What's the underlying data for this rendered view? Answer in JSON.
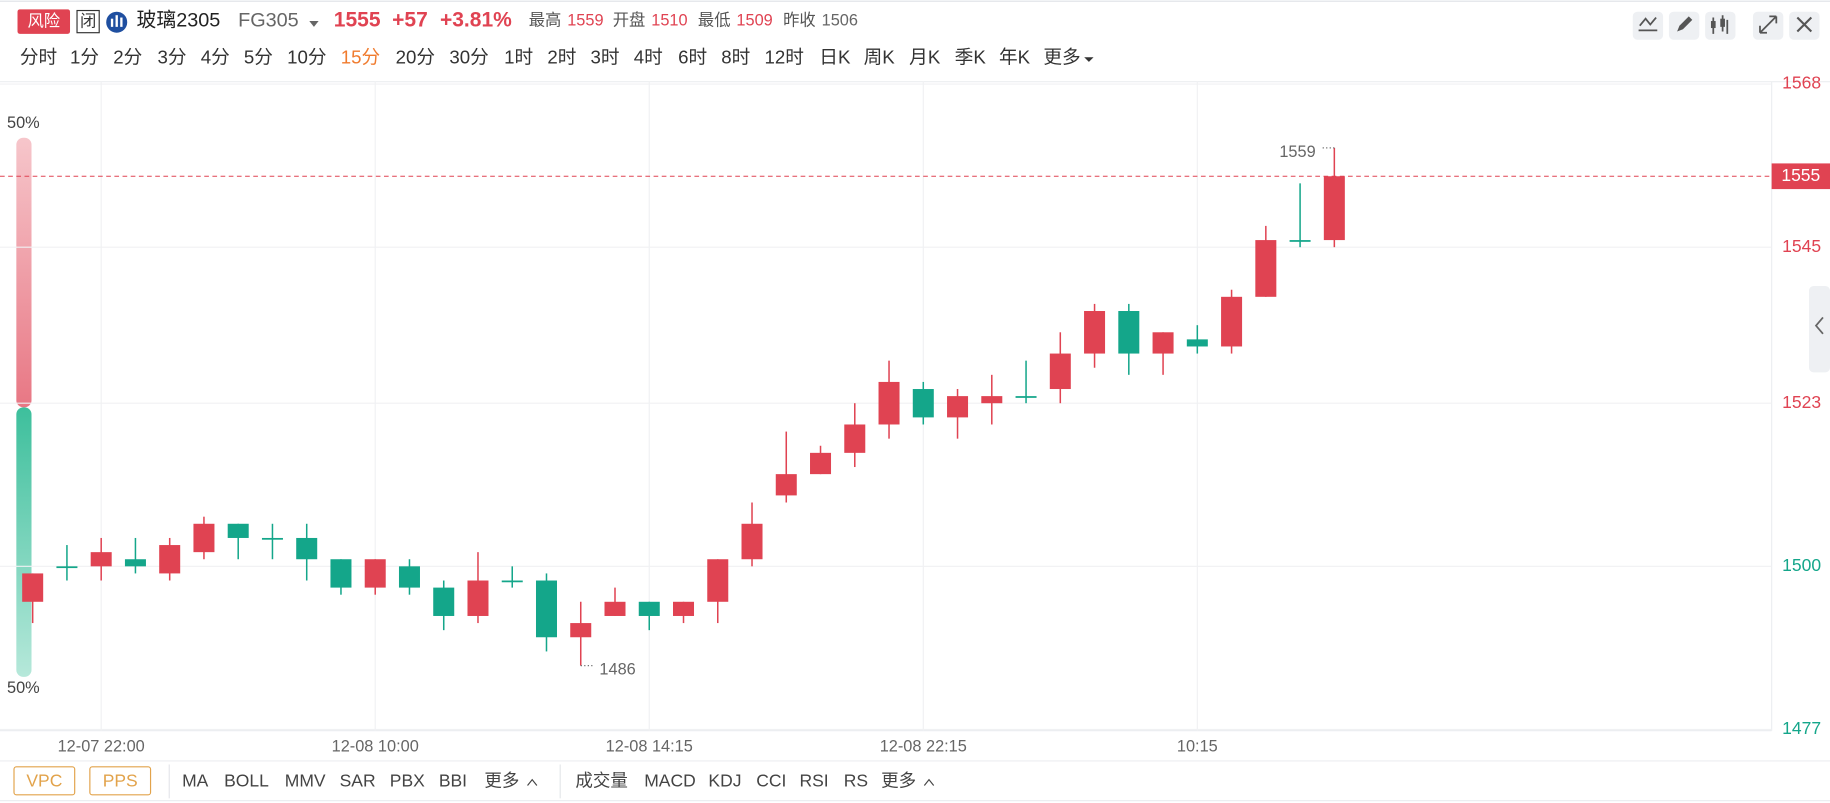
{
  "header": {
    "badge": "风险",
    "status": "闭",
    "name": "玻璃2305",
    "code": "FG305",
    "price": 1555,
    "change": "+57",
    "change_pct": "+3.81%",
    "stats": [
      {
        "label": "最高",
        "value": 1559
      },
      {
        "label": "开盘",
        "value": 1510
      },
      {
        "label": "最低",
        "value": 1509
      },
      {
        "label": "昨收",
        "value": 1506
      }
    ]
  },
  "periods": [
    "分时",
    "1分",
    "2分",
    "3分",
    "4分",
    "5分",
    "10分",
    "15分",
    "20分",
    "30分",
    "1时",
    "2时",
    "3时",
    "4时",
    "6时",
    "8时",
    "12时",
    "日K",
    "周K",
    "月K",
    "季K",
    "年K",
    "更多"
  ],
  "active_period": 7,
  "gauge": {
    "top": "50%",
    "bottom": "50%"
  },
  "indicators": {
    "boxed": [
      "VPC",
      "PPS"
    ],
    "main": [
      "MA",
      "BOLL",
      "MMV",
      "SAR",
      "PBX",
      "BBI",
      "更多"
    ],
    "sub": [
      "成交量",
      "MACD",
      "KDJ",
      "CCI",
      "RSI",
      "RS",
      "更多"
    ]
  },
  "chart_data": {
    "type": "candlestick",
    "categories": [
      null,
      null,
      "12-07 22:00",
      null,
      null,
      null,
      null,
      null,
      null,
      null,
      "12-08 10:00",
      null,
      null,
      null,
      null,
      null,
      null,
      null,
      "12-08 14:15",
      null,
      null,
      null,
      null,
      null,
      null,
      null,
      "12-08 22:15",
      null,
      null,
      null,
      null,
      null,
      null,
      null,
      "10:15",
      null,
      null,
      null,
      null
    ],
    "open": [
      1495,
      1500,
      1500,
      1501,
      1499,
      1502,
      1506,
      1504,
      1504,
      1501,
      1497,
      1500,
      1497,
      1493,
      1498,
      1498,
      1490,
      1493,
      1495,
      1493,
      1495,
      1501,
      1510,
      1513,
      1516,
      1520,
      1525,
      1521,
      1523,
      1524,
      1525,
      1530,
      1536,
      1530,
      1532,
      1531,
      1538,
      1546,
      1546
    ],
    "high": [
      1499,
      1503,
      1504,
      1504,
      1504,
      1507,
      1506,
      1506,
      1506,
      1501,
      1501,
      1501,
      1498,
      1502,
      1500,
      1499,
      1495,
      1497,
      1495,
      1495,
      1501,
      1509,
      1519,
      1517,
      1523,
      1529,
      1526,
      1525,
      1527,
      1529,
      1533,
      1537,
      1537,
      1533,
      1534,
      1539,
      1548,
      1554,
      1559
    ],
    "low": [
      1492,
      1498,
      1498,
      1499,
      1498,
      1501,
      1501,
      1501,
      1498,
      1496,
      1496,
      1496,
      1491,
      1492,
      1497,
      1488,
      1486,
      1493,
      1491,
      1492,
      1492,
      1500,
      1509,
      1513,
      1514,
      1518,
      1520,
      1518,
      1520,
      1523,
      1523,
      1528,
      1527,
      1527,
      1530,
      1530,
      1538,
      1545,
      1545
    ],
    "close": [
      1499,
      1500,
      1502,
      1500,
      1503,
      1506,
      1504,
      1504,
      1501,
      1497,
      1501,
      1497,
      1493,
      1498,
      1498,
      1490,
      1492,
      1495,
      1493,
      1495,
      1501,
      1506,
      1513,
      1516,
      1520,
      1526,
      1521,
      1524,
      1524,
      1524,
      1530,
      1536,
      1530,
      1533,
      1531,
      1538,
      1546,
      1546,
      1555
    ],
    "up_color": "#e04352",
    "down_color": "#14a68a",
    "ylim": [
      1477,
      1568
    ],
    "yticks": [
      1568,
      1545,
      1523,
      1500,
      1477
    ],
    "grid": true,
    "annotations": [
      1559,
      1486
    ]
  }
}
